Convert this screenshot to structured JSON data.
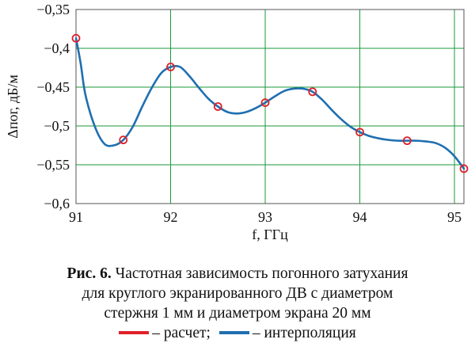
{
  "chart_data": {
    "type": "line",
    "xlabel": "f, ГГц",
    "ylabel": "Δпог, дБ/м",
    "xlim": [
      91,
      95.1
    ],
    "ylim": [
      -0.6,
      -0.35
    ],
    "xticks": [
      "91",
      "92",
      "93",
      "94",
      "95"
    ],
    "yticks": [
      "−0,35",
      "−0,4",
      "−0,45",
      "−0,5",
      "−0,55",
      "−0,6"
    ],
    "grid": true,
    "series": [
      {
        "name": "расчет",
        "marker": "circle",
        "color": "#e0202a",
        "x": [
          91,
          91.5,
          92,
          92.5,
          93,
          93.5,
          94,
          94.5,
          95.1
        ],
        "y": [
          -0.387,
          -0.518,
          -0.424,
          -0.475,
          -0.47,
          -0.456,
          -0.508,
          -0.519,
          -0.555
        ]
      },
      {
        "name": "интерполяция",
        "color": "#1f6fb0",
        "x": [
          91,
          91.05,
          91.1,
          91.2,
          91.3,
          91.4,
          91.5,
          91.6,
          91.7,
          91.8,
          91.9,
          92,
          92.1,
          92.2,
          92.3,
          92.4,
          92.5,
          92.6,
          92.7,
          92.8,
          92.9,
          93,
          93.1,
          93.2,
          93.3,
          93.4,
          93.5,
          93.6,
          93.7,
          93.8,
          93.9,
          94,
          94.1,
          94.2,
          94.3,
          94.4,
          94.5,
          94.6,
          94.7,
          94.8,
          94.9,
          95,
          95.1
        ],
        "y": [
          -0.387,
          -0.42,
          -0.46,
          -0.501,
          -0.523,
          -0.525,
          -0.518,
          -0.501,
          -0.475,
          -0.451,
          -0.432,
          -0.424,
          -0.424,
          -0.436,
          -0.451,
          -0.465,
          -0.475,
          -0.482,
          -0.484,
          -0.482,
          -0.477,
          -0.47,
          -0.462,
          -0.455,
          -0.452,
          -0.452,
          -0.456,
          -0.466,
          -0.479,
          -0.491,
          -0.501,
          -0.508,
          -0.513,
          -0.516,
          -0.518,
          -0.519,
          -0.519,
          -0.519,
          -0.52,
          -0.522,
          -0.528,
          -0.539,
          -0.555
        ]
      }
    ]
  },
  "caption": {
    "fig_label": "Рис. 6.",
    "line1": " Частотная зависимость погонного затухания",
    "line2": "для круглого экранированного ДВ с диаметром",
    "line3": "стержня 1 мм и диаметром экрана 20 мм",
    "legend_calc": "– расчет;",
    "legend_interp": "– интерполяция"
  },
  "colors": {
    "calc": "#e0202a",
    "interp": "#1f6fb0",
    "grid": "#1a9a3a",
    "axis": "#555555"
  }
}
